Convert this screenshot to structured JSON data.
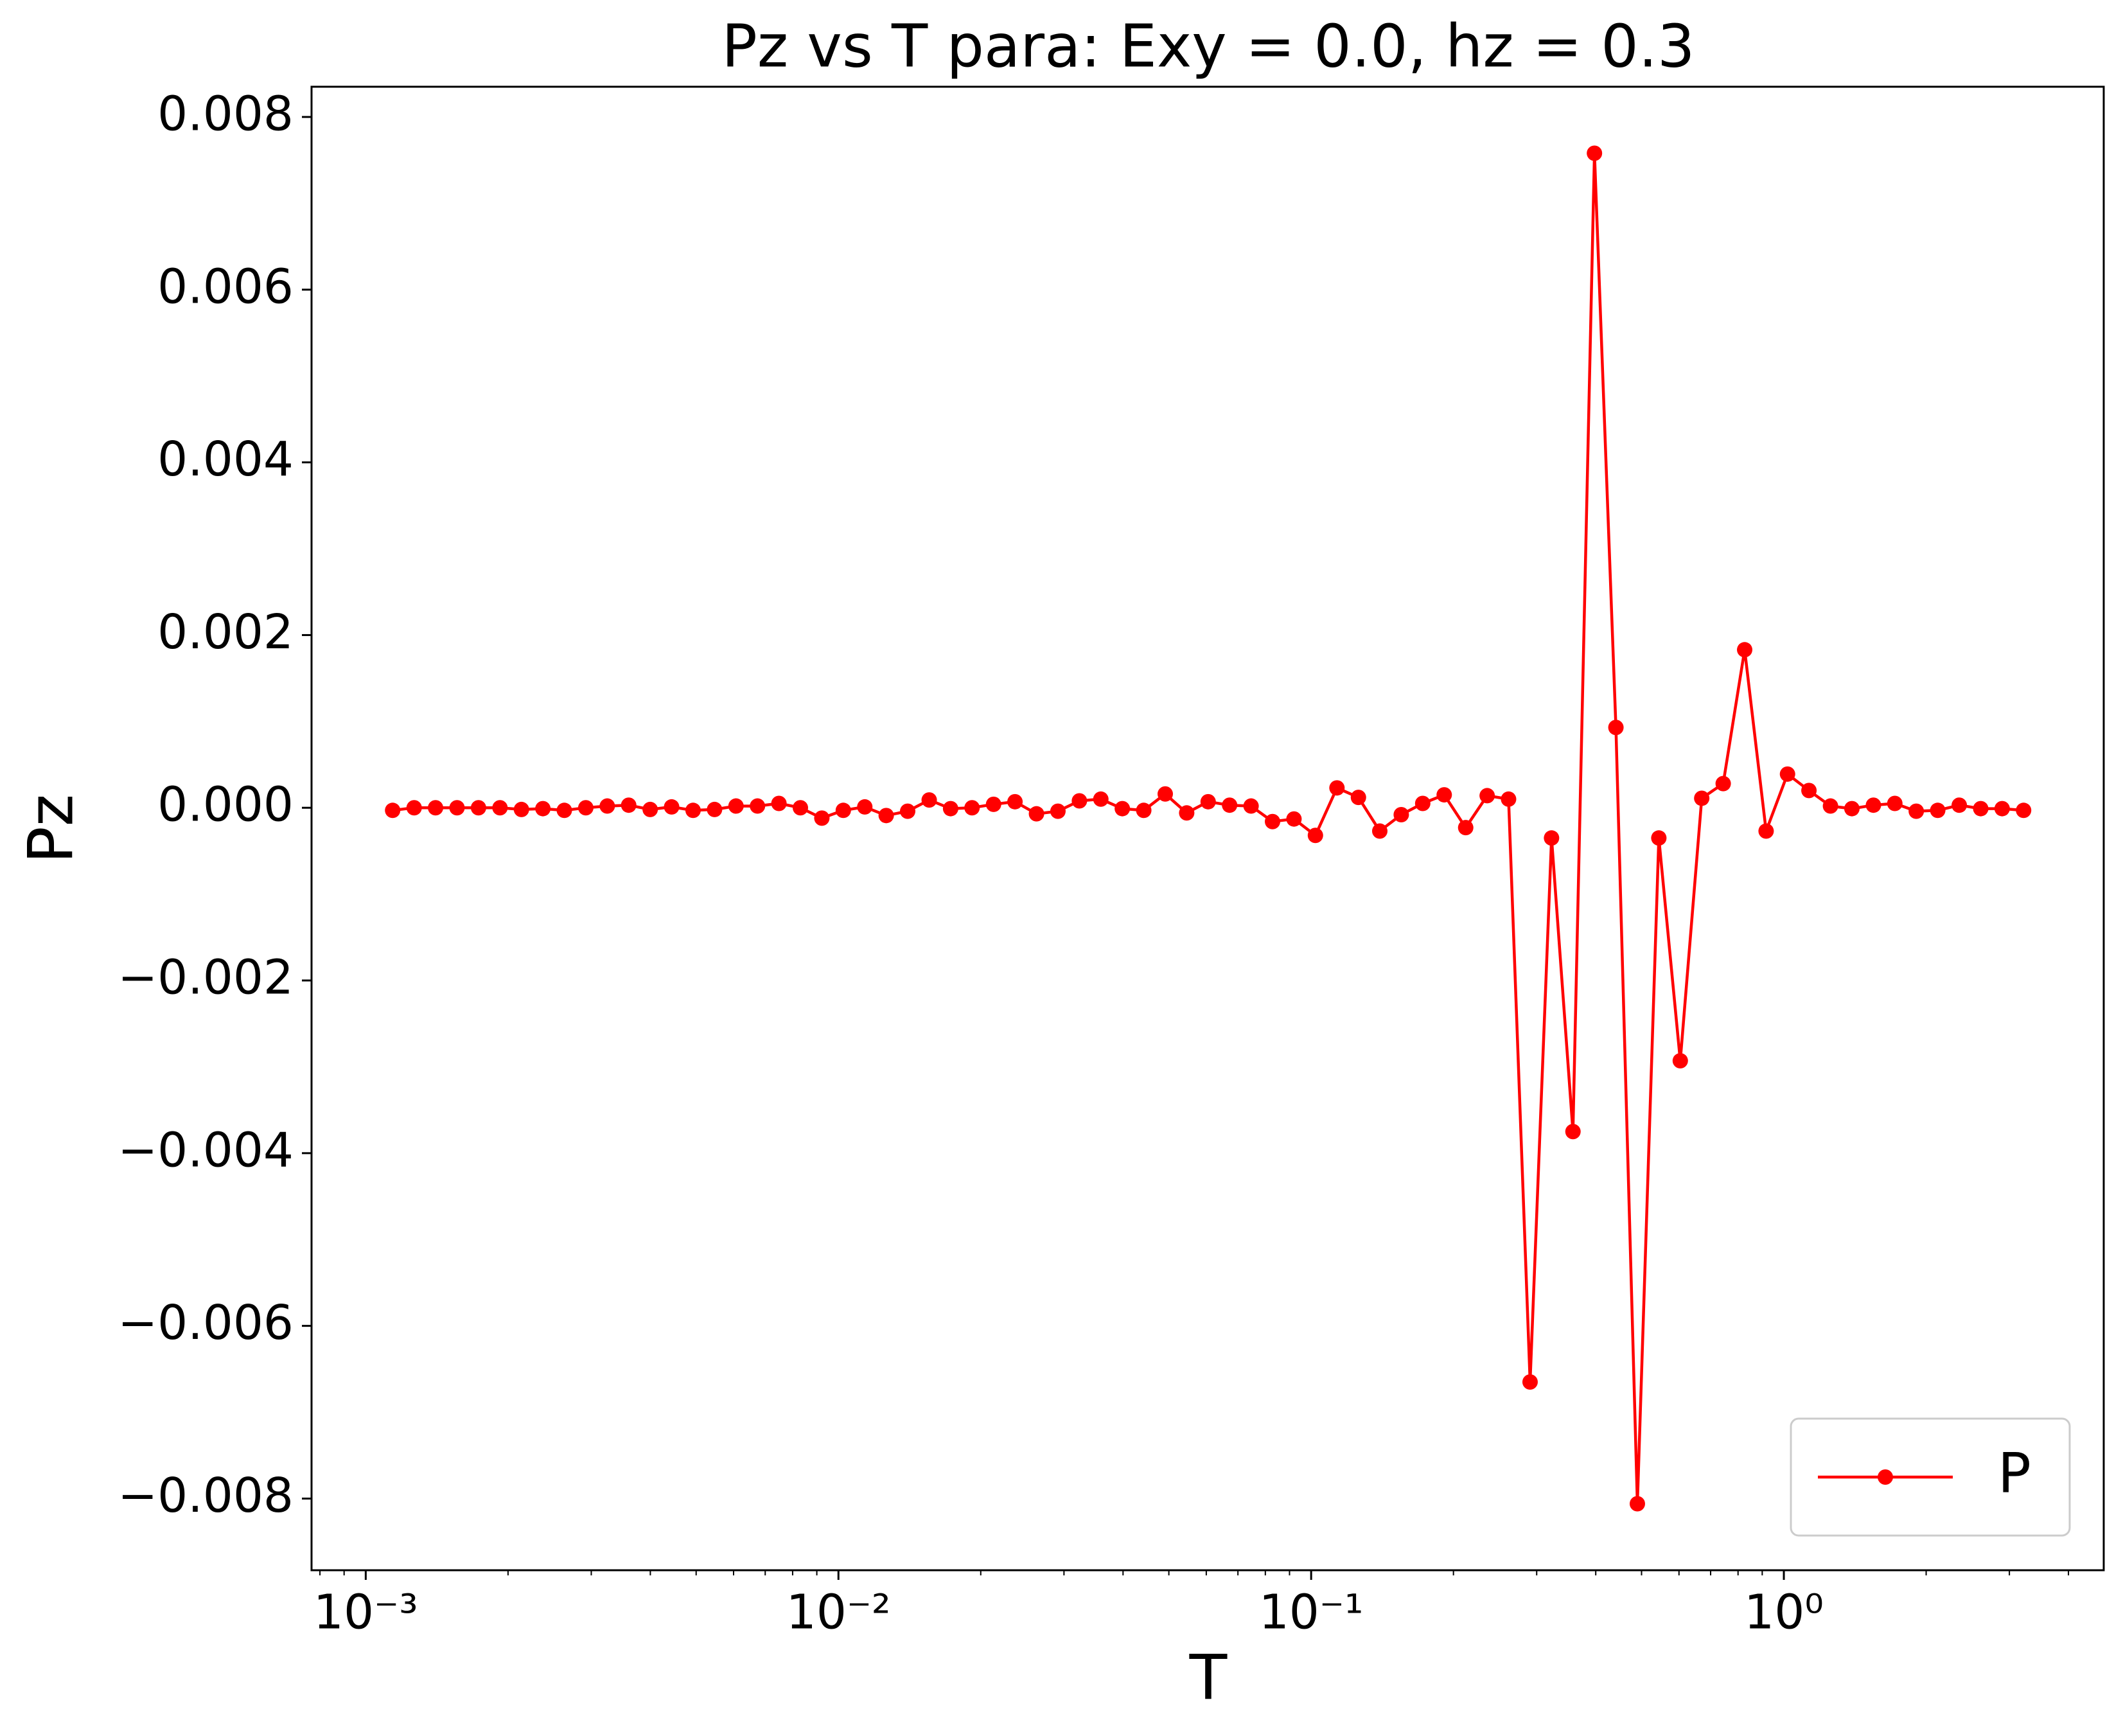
{
  "chart_data": {
    "type": "line",
    "title": "Pz vs T para: Exy = 0.0, hz = 0.3",
    "xlabel": "T",
    "ylabel": "Pz",
    "xscale": "log",
    "x": [
      0.00114,
      0.001266,
      0.001405,
      0.00156,
      0.001732,
      0.001923,
      0.002135,
      0.00237,
      0.002631,
      0.002921,
      0.003243,
      0.0036,
      0.003997,
      0.004437,
      0.004926,
      0.005469,
      0.006072,
      0.006741,
      0.007484,
      0.008308,
      0.009224,
      0.01024,
      0.01137,
      0.01262,
      0.01401,
      0.01556,
      0.01727,
      0.01917,
      0.02129,
      0.02363,
      0.02624,
      0.02913,
      0.03234,
      0.0359,
      0.03986,
      0.04425,
      0.04913,
      0.05454,
      0.06055,
      0.06722,
      0.07463,
      0.08285,
      0.09198,
      0.1021,
      0.1134,
      0.1259,
      0.1397,
      0.1551,
      0.1722,
      0.1912,
      0.2123,
      0.2357,
      0.2616,
      0.2905,
      0.3225,
      0.358,
      0.3975,
      0.4413,
      0.4899,
      0.5439,
      0.6038,
      0.6703,
      0.7442,
      0.8262,
      0.9172,
      1.018,
      1.13,
      1.255,
      1.393,
      1.547,
      1.717,
      1.906,
      2.116,
      2.35,
      2.609,
      2.896,
      3.215
    ],
    "series": [
      {
        "name": "P",
        "color": "#ff0000",
        "values": [
          -3e-05,
          0,
          0,
          0,
          0,
          0,
          -2e-05,
          -1e-05,
          -3e-05,
          0,
          2e-05,
          3e-05,
          -2e-05,
          1e-05,
          -3e-05,
          -2e-05,
          2e-05,
          2e-05,
          5e-05,
          0,
          -0.00012,
          -3e-05,
          1e-05,
          -9e-05,
          -4e-05,
          9e-05,
          -1e-05,
          0,
          4e-05,
          7e-05,
          -7e-05,
          -4e-05,
          8e-05,
          0.0001,
          -1e-05,
          -3e-05,
          0.00016,
          -6e-05,
          7e-05,
          3e-05,
          2e-05,
          -0.00016,
          -0.00013,
          -0.00032,
          0.00023,
          0.00012,
          -0.00027,
          -8e-05,
          5e-05,
          0.00015,
          -0.00023,
          0.00014,
          0.0001,
          -0.00665,
          -0.00035,
          -0.00375,
          0.00758,
          0.00093,
          -0.00806,
          -0.00035,
          -0.00293,
          0.00011,
          0.00028,
          0.00183,
          -0.00027,
          0.00039,
          0.0002,
          2e-05,
          -1e-05,
          3e-05,
          5e-05,
          -4e-05,
          -3e-05,
          3e-05,
          -1e-05,
          -1e-05,
          -3e-05
        ]
      }
    ],
    "xlim": [
      0.000768,
      4.75
    ],
    "ylim": [
      -0.00883,
      0.00835
    ],
    "xticks": [
      {
        "value": 0.001,
        "label": "10⁻³"
      },
      {
        "value": 0.01,
        "label": "10⁻²"
      },
      {
        "value": 0.1,
        "label": "10⁻¹"
      },
      {
        "value": 1,
        "label": "10⁰"
      }
    ],
    "xminorticks": [
      0.0008,
      0.0009,
      0.002,
      0.003,
      0.004,
      0.005,
      0.006,
      0.007,
      0.008,
      0.009,
      0.02,
      0.03,
      0.04,
      0.05,
      0.06,
      0.07,
      0.08,
      0.09,
      0.2,
      0.3,
      0.4,
      0.5,
      0.6,
      0.7,
      0.8,
      0.9,
      2,
      3,
      4
    ],
    "yticks": [
      {
        "value": -0.008,
        "label": "−0.008"
      },
      {
        "value": -0.006,
        "label": "−0.006"
      },
      {
        "value": -0.004,
        "label": "−0.004"
      },
      {
        "value": -0.002,
        "label": "−0.002"
      },
      {
        "value": 0,
        "label": "0.000"
      },
      0.002,
      0.004,
      0.006,
      0.008
    ],
    "legend": "lower right",
    "grid": false
  }
}
